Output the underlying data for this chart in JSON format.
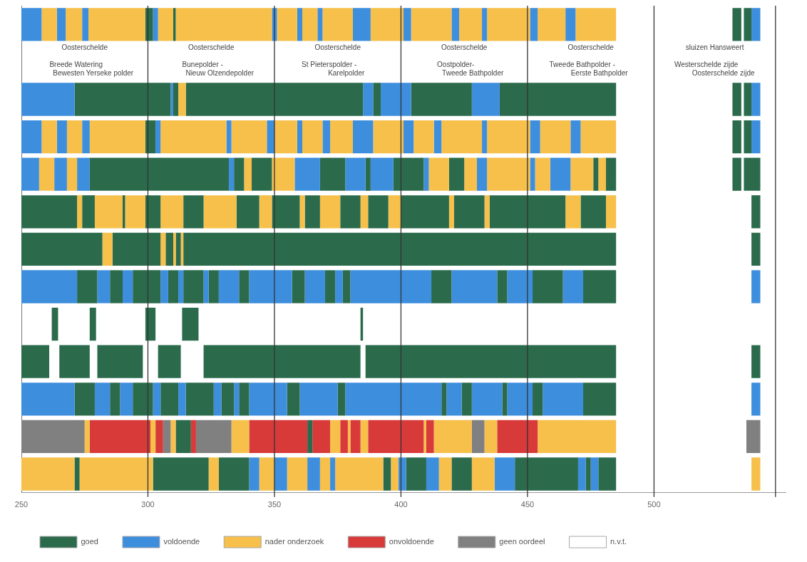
{
  "chart_data": {
    "type": "bar",
    "orientation": "horizontal",
    "legend": "bottom",
    "tick_labels": "x",
    "categories": [
      null,
      null,
      null,
      null,
      null,
      null,
      null,
      null,
      null,
      null,
      null,
      null,
      null
    ],
    "xlim": [
      250,
      552
    ],
    "xticks": [
      250,
      300,
      350,
      400,
      450,
      500
    ],
    "ref_lines": [
      {
        "axis": "x",
        "value": 300
      },
      {
        "axis": "x",
        "value": 350
      },
      {
        "axis": "x",
        "value": 400
      },
      {
        "axis": "x",
        "value": 450
      },
      {
        "axis": "x",
        "value": 500
      },
      {
        "axis": "x",
        "value": 548
      }
    ],
    "annotations": [
      "Oosterschelde",
      "Breede Watering",
      "Bewesten Yerseke polder",
      "Oosterschelde",
      "Bunepolder -",
      "Nieuw Olzendepolder",
      "Oosterschelde",
      "St Pieterspolder -",
      "Karelpolder",
      "Oosterschelde",
      "Oostpolder-",
      "Tweede Bathpolder",
      "Oosterschelde",
      "Tweede Bathpolder -",
      "Eerste Bathpolder",
      "sluizen Hansweert",
      "Westerschelde zijde",
      "Oosterschelde zijde"
    ],
    "series": [
      {
        "name": "goed",
        "color": "#2b6b4c",
        "values": [
          null,
          null,
          null,
          null,
          null,
          null,
          null,
          null,
          null,
          null,
          null,
          null,
          null
        ]
      },
      {
        "name": "voldoende",
        "color": "#3e8ede",
        "values": [
          null,
          null,
          null,
          null,
          null,
          null,
          null,
          null,
          null,
          null,
          null,
          null,
          null
        ]
      },
      {
        "name": "nader onderzoek",
        "color": "#f6c04b",
        "values": [
          null,
          null,
          null,
          null,
          null,
          null,
          null,
          null,
          null,
          null,
          null,
          null,
          null
        ]
      },
      {
        "name": "onvoldoende",
        "color": "#d83a3a",
        "values": [
          null,
          null,
          null,
          null,
          null,
          null,
          null,
          null,
          null,
          null,
          null,
          null,
          null
        ]
      },
      {
        "name": "geen oordeel",
        "color": "#808080",
        "values": [
          null,
          null,
          null,
          null,
          null,
          null,
          null,
          null,
          null,
          null,
          null,
          null,
          null
        ]
      },
      {
        "name": "n.v.t.",
        "color": "#ffffff",
        "values": [
          null,
          null,
          null,
          null,
          null,
          null,
          null,
          null,
          null,
          null,
          null,
          null,
          null
        ]
      },
      {
        "base": [
          250,
          null,
          250,
          250,
          250,
          250,
          250,
          250,
          null,
          250,
          250,
          250,
          250
        ],
        "values": [
          8,
          null,
          21,
          8,
          7,
          22,
          32,
          22,
          null,
          11,
          21,
          25,
          21
        ],
        "colors": [
          "#3e8ede",
          null,
          "#3e8ede",
          "#3e8ede",
          "#3e8ede",
          "#2b6b4c",
          "#2b6b4c",
          "#3e8ede",
          null,
          "#2b6b4c",
          "#3e8ede",
          "#808080",
          "#f6c04b"
        ]
      },
      {
        "base": [
          258,
          null,
          271,
          258,
          257,
          272,
          282,
          272,
          262,
          null,
          271,
          275,
          271
        ],
        "values": [
          6,
          null,
          38,
          6,
          6,
          2,
          4,
          8,
          2.5,
          null,
          8,
          2,
          2
        ],
        "colors": [
          "#f6c04b",
          null,
          "#2b6b4c",
          "#f6c04b",
          "#f6c04b",
          "#f6c04b",
          "#f6c04b",
          "#2b6b4c",
          "#2b6b4c",
          null,
          "#2b6b4c",
          "#f6c04b",
          "#2b6b4c"
        ]
      },
      {
        "base": [
          264,
          null,
          309,
          264,
          263,
          274,
          286,
          280,
          null,
          265,
          279,
          277,
          273
        ],
        "values": [
          3.5,
          null,
          1,
          4,
          5,
          5,
          19,
          5,
          null,
          12,
          6,
          24,
          29
        ],
        "colors": [
          "#3e8ede",
          null,
          "#3e8ede",
          "#3e8ede",
          "#3e8ede",
          "#2b6b4c",
          "#2b6b4c",
          "#3e8ede",
          null,
          "#2b6b4c",
          "#3e8ede",
          "#d83a3a",
          "#f6c04b"
        ]
      },
      {
        "base": [
          267.5,
          null,
          310,
          268,
          268,
          279,
          305,
          285,
          277,
          null,
          285,
          301,
          302
        ],
        "values": [
          6.5,
          null,
          2,
          6,
          4,
          11,
          2,
          5,
          2.5,
          null,
          4,
          2,
          22
        ],
        "colors": [
          "#f6c04b",
          null,
          "#2b6b4c",
          "#f6c04b",
          "#f6c04b",
          "#f6c04b",
          "#f6c04b",
          "#2b6b4c",
          "#2b6b4c",
          null,
          "#2b6b4c",
          "#f6c04b",
          "#2b6b4c"
        ]
      },
      {
        "base": [
          274,
          null,
          312,
          274,
          272,
          290,
          307,
          290,
          null,
          280,
          289,
          303,
          324
        ],
        "values": [
          2.5,
          null,
          3,
          3,
          5,
          1,
          3,
          4,
          null,
          18,
          5,
          3,
          4
        ],
        "colors": [
          "#3e8ede",
          null,
          "#f6c04b",
          "#3e8ede",
          "#3e8ede",
          "#2b6b4c",
          "#2b6b4c",
          "#3e8ede",
          null,
          "#2b6b4c",
          "#3e8ede",
          "#d83a3a",
          "#f6c04b"
        ]
      },
      {
        "base": [
          276.5,
          null,
          315,
          277,
          277,
          291,
          310,
          294,
          299,
          null,
          294,
          306,
          328
        ],
        "values": [
          22.5,
          null,
          70,
          22,
          55,
          8,
          1,
          11,
          4,
          null,
          8,
          3,
          12
        ],
        "colors": [
          "#f6c04b",
          null,
          "#2b6b4c",
          "#f6c04b",
          "#2b6b4c",
          "#f6c04b",
          "#f6c04b",
          "#2b6b4c",
          "#2b6b4c",
          null,
          "#2b6b4c",
          "#808080",
          "#2b6b4c"
        ]
      },
      {
        "base": [
          299,
          null,
          385,
          299,
          332,
          299,
          311,
          305,
          null,
          304,
          302,
          309,
          340
        ],
        "values": [
          3,
          null,
          4,
          4,
          2,
          6,
          2,
          3,
          null,
          9,
          3,
          2,
          4
        ],
        "colors": [
          "#2b6b4c",
          null,
          "#3e8ede",
          "#2b6b4c",
          "#3e8ede",
          "#2b6b4c",
          "#2b6b4c",
          "#3e8ede",
          null,
          "#2b6b4c",
          "#3e8ede",
          "#f6c04b",
          "#3e8ede"
        ]
      },
      {
        "base": [
          302,
          null,
          389,
          303,
          334,
          305,
          313,
          308,
          313.5,
          null,
          305,
          311,
          344
        ],
        "values": [
          2,
          null,
          3,
          2,
          4,
          9,
          1,
          4,
          6.5,
          null,
          7,
          6,
          6
        ],
        "colors": [
          "#3e8ede",
          null,
          "#2b6b4c",
          "#3e8ede",
          "#2b6b4c",
          "#f6c04b",
          "#f6c04b",
          "#2b6b4c",
          "#2b6b4c",
          null,
          "#2b6b4c",
          "#2b6b4c",
          "#f6c04b"
        ]
      },
      {
        "base": [
          304,
          null,
          392,
          305,
          338,
          314,
          314,
          312,
          null,
          322,
          312,
          317,
          350
        ],
        "values": [
          6,
          null,
          12,
          26,
          3,
          8,
          171,
          2,
          null,
          62,
          3,
          2,
          5
        ],
        "colors": [
          "#f6c04b",
          null,
          "#3e8ede",
          "#f6c04b",
          "#f6c04b",
          "#2b6b4c",
          "#2b6b4c",
          "#3e8ede",
          null,
          "#2b6b4c",
          "#3e8ede",
          "#d83a3a",
          "#3e8ede"
        ]
      },
      {
        "base": [
          310,
          null,
          404,
          331,
          341,
          322,
          538.5,
          314,
          384,
          null,
          315,
          319,
          355
        ],
        "values": [
          1,
          null,
          24,
          2,
          8,
          13,
          3.5,
          8,
          1,
          null,
          11,
          14,
          8
        ],
        "colors": [
          "#2b6b4c",
          null,
          "#2b6b4c",
          "#3e8ede",
          "#2b6b4c",
          "#f6c04b",
          "#2b6b4c",
          "#2b6b4c",
          "#2b6b4c",
          null,
          "#2b6b4c",
          "#808080",
          "#f6c04b"
        ]
      },
      {
        "base": [
          311,
          null,
          428,
          333,
          349,
          335,
          null,
          322,
          null,
          386,
          326,
          333,
          363
        ],
        "values": [
          38,
          null,
          11,
          14,
          9,
          9,
          null,
          2,
          null,
          99,
          3,
          7,
          5
        ],
        "colors": [
          "#f6c04b",
          null,
          "#3e8ede",
          "#f6c04b",
          "#f6c04b",
          "#2b6b4c",
          null,
          "#3e8ede",
          null,
          "#2b6b4c",
          "#3e8ede",
          "#f6c04b",
          "#3e8ede"
        ]
      },
      {
        "base": [
          349,
          null,
          439,
          347,
          358,
          344,
          null,
          324,
          null,
          538.5,
          329,
          340,
          368
        ],
        "values": [
          2,
          null,
          46,
          3,
          10,
          5,
          null,
          4,
          null,
          3.5,
          5,
          23,
          4
        ],
        "colors": [
          "#3e8ede",
          null,
          "#2b6b4c",
          "#3e8ede",
          "#3e8ede",
          "#f6c04b",
          null,
          "#2b6b4c",
          null,
          "#2b6b4c",
          "#2b6b4c",
          "#d83a3a",
          "#f6c04b"
        ]
      },
      {
        "base": [
          351,
          null,
          531,
          350,
          368,
          349,
          null,
          328,
          null,
          null,
          334,
          363,
          372
        ],
        "values": [
          8,
          null,
          3.5,
          9,
          10,
          11,
          null,
          8,
          null,
          null,
          2,
          2,
          2
        ],
        "colors": [
          "#f6c04b",
          null,
          "#2b6b4c",
          "#f6c04b",
          "#2b6b4c",
          "#2b6b4c",
          null,
          "#3e8ede",
          null,
          null,
          "#3e8ede",
          "#2b6b4c",
          "#3e8ede"
        ]
      },
      {
        "base": [
          359,
          null,
          535.5,
          359,
          378,
          360,
          null,
          336,
          null,
          null,
          336,
          365,
          374
        ],
        "values": [
          2,
          null,
          3,
          2,
          8,
          2,
          null,
          4,
          null,
          null,
          4,
          7,
          19
        ],
        "colors": [
          "#3e8ede",
          null,
          "#2b6b4c",
          "#3e8ede",
          "#3e8ede",
          "#f6c04b",
          null,
          "#2b6b4c",
          null,
          null,
          "#2b6b4c",
          "#d83a3a",
          "#f6c04b"
        ]
      },
      {
        "base": [
          361,
          null,
          538.5,
          361,
          386,
          362,
          null,
          340,
          null,
          null,
          340,
          372,
          393
        ],
        "values": [
          6,
          null,
          3.5,
          8,
          2,
          6,
          null,
          17,
          null,
          null,
          15,
          4,
          3
        ],
        "colors": [
          "#f6c04b",
          null,
          "#3e8ede",
          "#f6c04b",
          "#2b6b4c",
          "#2b6b4c",
          null,
          "#3e8ede",
          null,
          null,
          "#3e8ede",
          "#f6c04b",
          "#2b6b4c"
        ]
      },
      {
        "base": [
          367,
          null,
          null,
          369,
          388,
          368,
          null,
          357,
          null,
          null,
          355,
          376,
          396
        ],
        "values": [
          2,
          null,
          null,
          3,
          9,
          8,
          null,
          5,
          null,
          null,
          5,
          3,
          3
        ],
        "colors": [
          "#3e8ede",
          null,
          null,
          "#3e8ede",
          "#3e8ede",
          "#f6c04b",
          null,
          "#2b6b4c",
          null,
          null,
          "#2b6b4c",
          "#d83a3a",
          "#f6c04b"
        ]
      },
      {
        "base": [
          369,
          null,
          null,
          372,
          397,
          376,
          null,
          362,
          null,
          null,
          360,
          379,
          399
        ],
        "values": [
          12,
          null,
          null,
          9,
          12,
          8,
          null,
          8,
          null,
          null,
          15,
          1,
          3
        ],
        "colors": [
          "#f6c04b",
          null,
          null,
          "#f6c04b",
          "#2b6b4c",
          "#2b6b4c",
          null,
          "#3e8ede",
          null,
          null,
          "#3e8ede",
          "#f6c04b",
          "#3e8ede"
        ]
      },
      {
        "base": [
          381,
          null,
          null,
          381,
          409,
          384,
          null,
          370,
          null,
          null,
          375,
          380,
          402
        ],
        "values": [
          7,
          null,
          null,
          8,
          2,
          3,
          null,
          4,
          null,
          null,
          3,
          4,
          8
        ],
        "colors": [
          "#3e8ede",
          null,
          null,
          "#3e8ede",
          "#3e8ede",
          "#f6c04b",
          null,
          "#2b6b4c",
          null,
          null,
          "#2b6b4c",
          "#d83a3a",
          "#2b6b4c"
        ]
      },
      {
        "base": [
          388,
          null,
          null,
          389,
          411,
          387,
          null,
          374,
          null,
          null,
          378,
          384,
          410
        ],
        "values": [
          13,
          null,
          null,
          12,
          8,
          8,
          null,
          3,
          null,
          null,
          38,
          3,
          5
        ],
        "colors": [
          "#f6c04b",
          null,
          null,
          "#f6c04b",
          "#f6c04b",
          "#2b6b4c",
          null,
          "#3e8ede",
          null,
          null,
          "#3e8ede",
          "#f6c04b",
          "#3e8ede"
        ]
      },
      {
        "base": [
          401,
          null,
          null,
          401,
          419,
          395,
          null,
          377,
          null,
          null,
          416,
          387,
          415
        ],
        "values": [
          3,
          null,
          null,
          4,
          6,
          5,
          null,
          3,
          null,
          null,
          2,
          22,
          5
        ],
        "colors": [
          "#3e8ede",
          null,
          null,
          "#3e8ede",
          "#2b6b4c",
          "#f6c04b",
          null,
          "#2b6b4c",
          null,
          null,
          "#2b6b4c",
          "#d83a3a",
          "#f6c04b"
        ]
      },
      {
        "base": [
          404,
          null,
          null,
          405,
          425,
          400,
          null,
          380,
          null,
          null,
          418,
          409,
          420
        ],
        "values": [
          16,
          null,
          null,
          8,
          5,
          19,
          null,
          32,
          null,
          null,
          6,
          1,
          8
        ],
        "colors": [
          "#f6c04b",
          null,
          null,
          "#f6c04b",
          "#f6c04b",
          "#2b6b4c",
          null,
          "#3e8ede",
          null,
          null,
          "#3e8ede",
          "#f6c04b",
          "#2b6b4c"
        ]
      },
      {
        "base": [
          420,
          null,
          null,
          413,
          430,
          419,
          null,
          412,
          null,
          null,
          424,
          410,
          428
        ],
        "values": [
          3,
          null,
          null,
          3,
          4,
          2,
          null,
          8,
          null,
          null,
          4,
          3,
          9
        ],
        "colors": [
          "#3e8ede",
          null,
          null,
          "#3e8ede",
          "#3e8ede",
          "#f6c04b",
          null,
          "#2b6b4c",
          null,
          null,
          "#2b6b4c",
          "#d83a3a",
          "#f6c04b"
        ]
      },
      {
        "base": [
          423,
          null,
          null,
          416,
          434,
          421,
          null,
          420,
          null,
          null,
          428,
          413,
          437
        ],
        "values": [
          9,
          null,
          null,
          16,
          17,
          12,
          null,
          18,
          null,
          null,
          12,
          15,
          8
        ],
        "colors": [
          "#f6c04b",
          null,
          null,
          "#f6c04b",
          "#f6c04b",
          "#2b6b4c",
          null,
          "#3e8ede",
          null,
          null,
          "#3e8ede",
          "#f6c04b",
          "#3e8ede"
        ]
      },
      {
        "base": [
          432,
          null,
          null,
          432,
          451,
          433,
          null,
          438,
          null,
          null,
          440,
          428,
          445
        ],
        "values": [
          2,
          null,
          null,
          2,
          2,
          2,
          null,
          4,
          null,
          null,
          2,
          5,
          25
        ],
        "colors": [
          "#3e8ede",
          null,
          null,
          "#3e8ede",
          "#3e8ede",
          "#f6c04b",
          null,
          "#2b6b4c",
          null,
          null,
          "#2b6b4c",
          "#808080",
          "#2b6b4c"
        ]
      },
      {
        "base": [
          434,
          null,
          null,
          434,
          453,
          435,
          null,
          442,
          null,
          null,
          442,
          433,
          470
        ],
        "values": [
          17,
          null,
          null,
          17,
          6,
          30,
          null,
          10,
          null,
          null,
          10,
          5,
          3
        ],
        "colors": [
          "#f6c04b",
          null,
          null,
          "#f6c04b",
          "#f6c04b",
          "#2b6b4c",
          null,
          "#3e8ede",
          null,
          null,
          "#3e8ede",
          "#f6c04b",
          "#3e8ede"
        ]
      },
      {
        "base": [
          451,
          null,
          null,
          451,
          459,
          465,
          null,
          452,
          null,
          null,
          452,
          438,
          473
        ],
        "values": [
          3,
          null,
          null,
          4,
          8,
          6,
          null,
          12,
          null,
          null,
          4,
          16,
          2
        ],
        "colors": [
          "#3e8ede",
          null,
          null,
          "#3e8ede",
          "#3e8ede",
          "#f6c04b",
          null,
          "#2b6b4c",
          null,
          null,
          "#2b6b4c",
          "#d83a3a",
          "#2b6b4c"
        ]
      },
      {
        "base": [
          454,
          null,
          null,
          455,
          467,
          471,
          null,
          464,
          null,
          null,
          456,
          454,
          475
        ],
        "values": [
          11,
          null,
          null,
          12,
          9,
          10,
          null,
          8,
          null,
          null,
          16,
          31,
          3
        ],
        "colors": [
          "#f6c04b",
          null,
          null,
          "#f6c04b",
          "#f6c04b",
          "#2b6b4c",
          null,
          "#3e8ede",
          null,
          null,
          "#3e8ede",
          "#f6c04b",
          "#3e8ede"
        ]
      },
      {
        "base": [
          465,
          null,
          null,
          467,
          476,
          481,
          null,
          472,
          null,
          null,
          472,
          536.5,
          478
        ],
        "values": [
          4,
          null,
          null,
          4,
          2,
          4,
          null,
          13,
          null,
          null,
          13,
          5.5,
          7
        ],
        "colors": [
          "#3e8ede",
          null,
          null,
          "#3e8ede",
          "#2b6b4c",
          "#f6c04b",
          null,
          "#2b6b4c",
          null,
          null,
          "#2b6b4c",
          "#808080",
          "#2b6b4c"
        ]
      },
      {
        "base": [
          469,
          null,
          null,
          471,
          478,
          538.5,
          null,
          538.5,
          null,
          null,
          538.5,
          null,
          538.5
        ],
        "values": [
          16,
          null,
          null,
          14,
          3,
          3.5,
          null,
          3.5,
          null,
          null,
          3.5,
          null,
          3.5
        ],
        "colors": [
          "#f6c04b",
          null,
          null,
          "#f6c04b",
          "#f6c04b",
          "#2b6b4c",
          null,
          "#3e8ede",
          null,
          null,
          "#3e8ede",
          null,
          "#f6c04b"
        ]
      },
      {
        "base": [
          531,
          null,
          null,
          531,
          481,
          null,
          null,
          null,
          null,
          null,
          null,
          null,
          null
        ],
        "values": [
          3.5,
          null,
          null,
          3.5,
          4,
          null,
          null,
          null,
          null,
          null,
          null,
          null,
          null
        ],
        "colors": [
          "#2b6b4c",
          null,
          null,
          "#2b6b4c",
          "#2b6b4c",
          null,
          null,
          null,
          null,
          null,
          null,
          null,
          null
        ]
      },
      {
        "base": [
          535.5,
          null,
          null,
          535.5,
          531,
          null,
          null,
          null,
          null,
          null,
          null,
          null,
          null
        ],
        "values": [
          3,
          null,
          null,
          3,
          3.5,
          null,
          null,
          null,
          null,
          null,
          null,
          null,
          null
        ],
        "colors": [
          "#2b6b4c",
          null,
          null,
          "#2b6b4c",
          "#2b6b4c",
          null,
          null,
          null,
          null,
          null,
          null,
          null,
          null
        ]
      },
      {
        "base": [
          538.5,
          null,
          null,
          538.5,
          535.5,
          null,
          null,
          null,
          null,
          null,
          null,
          null,
          null
        ],
        "values": [
          3.5,
          null,
          null,
          3.5,
          6.5,
          null,
          null,
          null,
          null,
          null,
          null,
          null,
          null
        ],
        "colors": [
          "#3e8ede",
          null,
          null,
          "#3e8ede",
          "#2b6b4c",
          null,
          null,
          null,
          null,
          null,
          null,
          null,
          null
        ]
      }
    ]
  }
}
